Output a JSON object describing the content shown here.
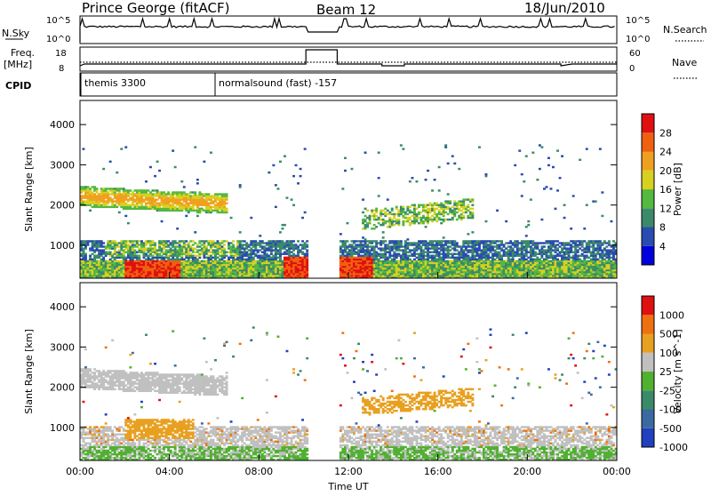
{
  "header": {
    "station": "Prince George (fitACF)",
    "beam": "Beam 12",
    "date": "18/Jun/2010"
  },
  "status_panels": {
    "nsky_label": "N.Sky",
    "nsky_ticks": [
      "10^5",
      "10^0"
    ],
    "nsearch_label": "N.Search",
    "nsearch_ticks": [
      "10^5",
      "10^0"
    ],
    "freq_label": "Freq.",
    "freq_unit": "[MHz]",
    "freq_ticks": [
      "18",
      "8"
    ],
    "nave_label": "Nave",
    "nave_ticks": [
      "60",
      "0"
    ],
    "cpid_label": "CPID",
    "cpid_modes": [
      {
        "text": "themis 3300",
        "start_hour": 0.0
      },
      {
        "text": "normalsound (fast) -157",
        "start_hour": 6.0
      }
    ]
  },
  "chart_data": [
    {
      "type": "heatmap",
      "name": "power",
      "ylabel": "Slant Range [km]",
      "xlabel": "",
      "ylim": [
        180,
        4600
      ],
      "yticks": [
        1000,
        2000,
        3000,
        4000
      ],
      "xlim_hours": [
        0,
        24
      ],
      "colorbar": {
        "label": "Power [dB]",
        "ticks": [
          "28",
          "24",
          "20",
          "16",
          "12",
          "8",
          "4"
        ],
        "colors": [
          "#0000dd",
          "#2a4bb0",
          "#3a8a6a",
          "#55b840",
          "#d8d020",
          "#f0a020",
          "#ef6010",
          "#e01010"
        ]
      }
    },
    {
      "type": "heatmap",
      "name": "velocity",
      "ylabel": "Slant Range [km]",
      "xlabel": "Time UT",
      "ylim": [
        180,
        4600
      ],
      "yticks": [
        1000,
        2000,
        3000,
        4000
      ],
      "xlim_hours": [
        0,
        24
      ],
      "xticks": [
        "00:00",
        "04:00",
        "08:00",
        "12:00",
        "16:00",
        "20:00",
        "00:00"
      ],
      "colorbar": {
        "label": "Velocity [m s^-1]",
        "ticks": [
          "1000",
          "500",
          "100",
          "25",
          "-25",
          "-100",
          "-500",
          "-1000"
        ],
        "colors": [
          "#2040c0",
          "#3a6aa0",
          "#3a8a6a",
          "#50b030",
          "#c0c0c0",
          "#e8a020",
          "#f07010",
          "#e01010"
        ]
      }
    }
  ],
  "colors": {
    "power_low": "#0000dd",
    "power_mid": "#40a060",
    "power_high": "#e01010",
    "ground_scatter": "#c0c0c0"
  }
}
